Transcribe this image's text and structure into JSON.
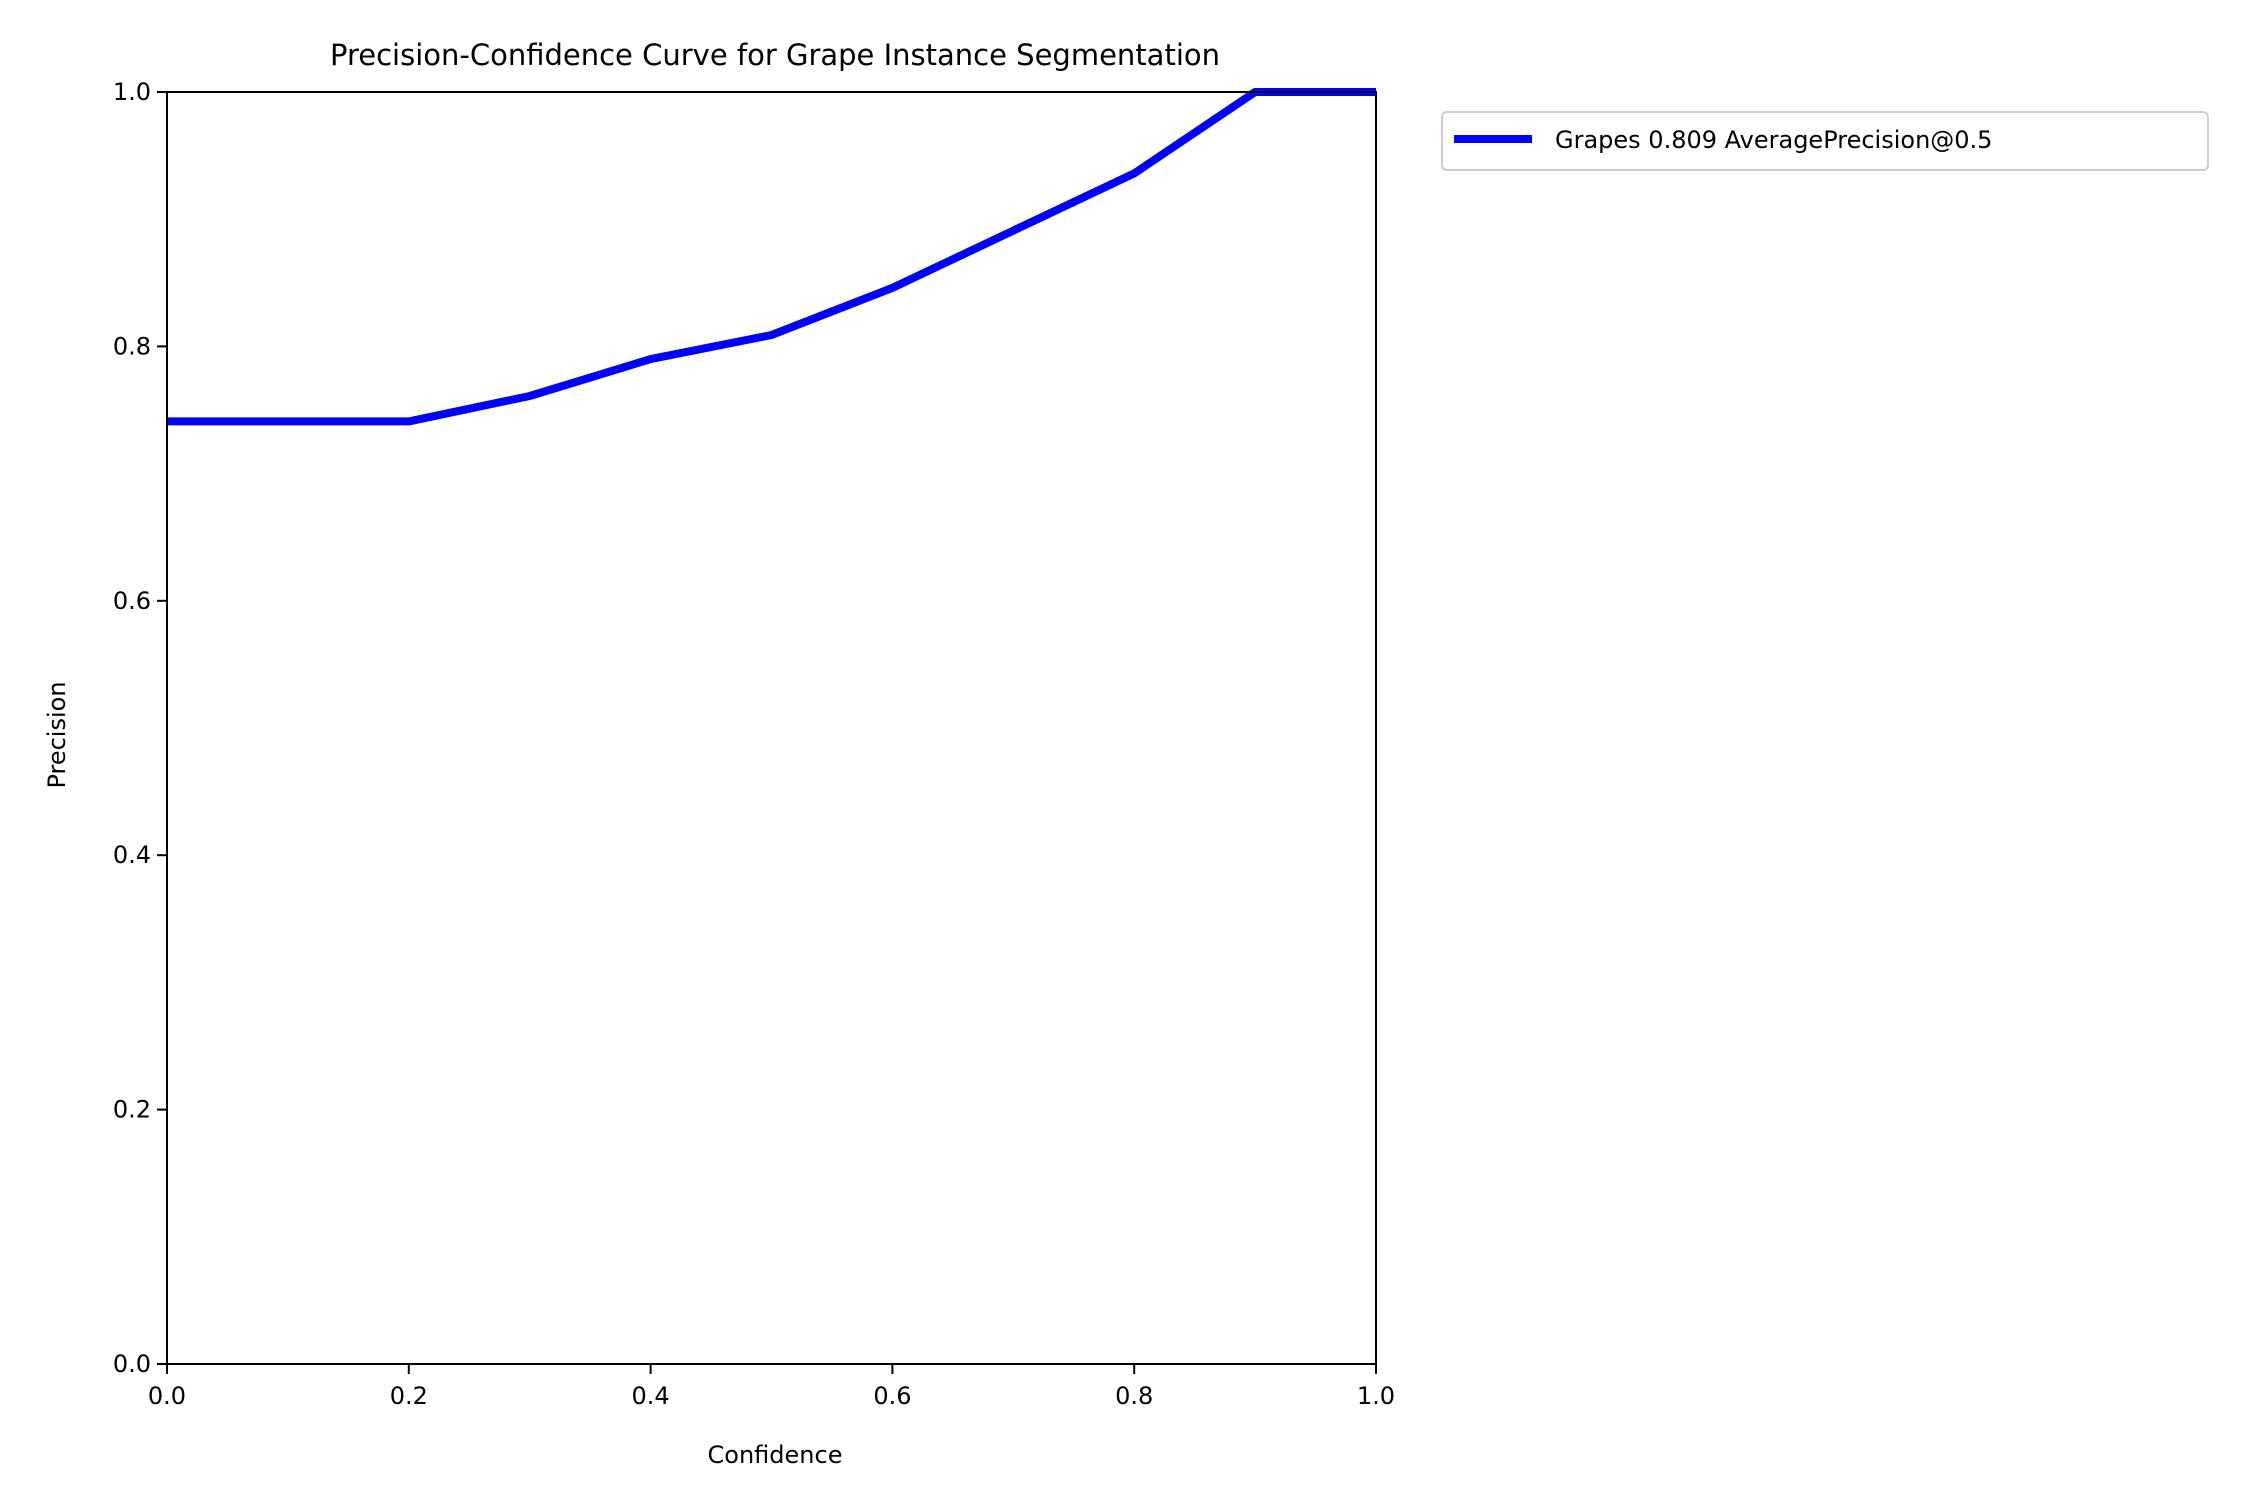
{
  "chart_data": {
    "type": "line",
    "title": "Precision-Confidence Curve for Grape Instance Segmentation",
    "xlabel": "Confidence",
    "ylabel": "Precision",
    "xlim": [
      0.0,
      1.0
    ],
    "ylim": [
      0.0,
      1.0
    ],
    "xticks": [
      "0.0",
      "0.2",
      "0.4",
      "0.6",
      "0.8",
      "1.0"
    ],
    "yticks": [
      "0.0",
      "0.2",
      "0.4",
      "0.6",
      "0.8",
      "1.0"
    ],
    "grid": false,
    "legend_position": "outside-upper-right",
    "series": [
      {
        "name": "Grapes 0.809 AveragePrecision@0.5",
        "color": "#0000ff",
        "x": [
          0.0,
          0.1,
          0.2,
          0.3,
          0.4,
          0.5,
          0.6,
          0.7,
          0.8,
          0.9,
          1.0
        ],
        "y": [
          0.741,
          0.741,
          0.741,
          0.761,
          0.79,
          0.809,
          0.846,
          0.891,
          0.936,
          1.0,
          1.0
        ]
      }
    ]
  }
}
